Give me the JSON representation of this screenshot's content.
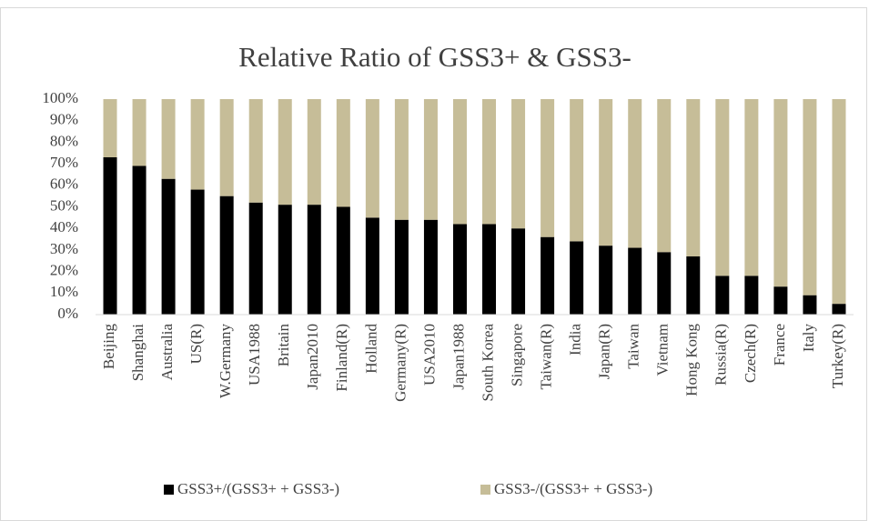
{
  "chart_data": {
    "type": "stacked_bar",
    "title": "Relative Ratio of GSS3+ & GSS3-",
    "categories": [
      "Beijing",
      "Shanghai",
      "Australia",
      "US(R)",
      "W.Germany",
      "USA1988",
      "Britain",
      "Japan2010",
      "Finland(R)",
      "Holland",
      "Germany(R)",
      "USA2010",
      "Japan1988",
      "South Korea",
      "Singapore",
      "Taiwan(R)",
      "India",
      "Japan(R)",
      "Taiwan",
      "Vietnam",
      "Hong Kong",
      "Russia(R)",
      "Czech(R)",
      "France",
      "Italy",
      "Turkey(R)"
    ],
    "series": [
      {
        "name": "GSS3+/(GSS3+ + GSS3-)",
        "color": "#000000",
        "values": [
          73,
          69,
          63,
          58,
          55,
          52,
          51,
          51,
          50,
          45,
          44,
          44,
          42,
          42,
          40,
          36,
          34,
          32,
          31,
          29,
          27,
          18,
          18,
          13,
          9,
          5
        ]
      },
      {
        "name": "GSS3-/(GSS3+ + GSS3-)",
        "color": "#c6bd98",
        "values": [
          27,
          31,
          37,
          42,
          45,
          48,
          49,
          49,
          50,
          55,
          56,
          56,
          58,
          58,
          60,
          64,
          66,
          68,
          69,
          71,
          73,
          82,
          82,
          87,
          91,
          95
        ]
      }
    ],
    "ylim": [
      0,
      100
    ],
    "yticks": [
      {
        "value": 0,
        "label": "0%"
      },
      {
        "value": 10,
        "label": "10%"
      },
      {
        "value": 20,
        "label": "20%"
      },
      {
        "value": 30,
        "label": "30%"
      },
      {
        "value": 40,
        "label": "40%"
      },
      {
        "value": 50,
        "label": "50%"
      },
      {
        "value": 60,
        "label": "60%"
      },
      {
        "value": 70,
        "label": "70%"
      },
      {
        "value": 80,
        "label": "80%"
      },
      {
        "value": 90,
        "label": "90%"
      },
      {
        "value": 100,
        "label": "100%"
      }
    ],
    "legend": "bottom"
  }
}
